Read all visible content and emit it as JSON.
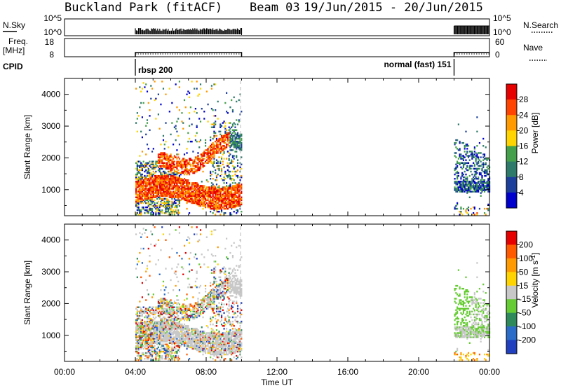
{
  "header": {
    "station": "Buckland Park (fitACF)",
    "beam": "Beam 03",
    "dates": "19/Jun/2015 - 20/Jun/2015"
  },
  "status_panels": {
    "nsky_label": "N.Sky",
    "nsky_ticks": [
      "10^5",
      "10^0"
    ],
    "nsearch_label": "N.Search",
    "nsearch_ticks": [
      "10^5",
      "10^0"
    ],
    "freq_label_line1": "Freq.",
    "freq_label_line2": "[MHz]",
    "freq_ticks": [
      "18",
      "8"
    ],
    "nave_label": "Nave",
    "nave_ticks": [
      "60",
      "0"
    ],
    "cpid_label": "CPID",
    "cpid_segments": [
      {
        "name": "rbsp 200",
        "start_hour": 4.0,
        "end_hour": 10.0
      },
      {
        "name": "normal (fast) 151",
        "start_hour": 22.0,
        "end_hour": 24.0
      }
    ]
  },
  "chart_data": [
    {
      "type": "heatmap",
      "panel": "power",
      "xlabel": "",
      "ylabel": "Slant Range [km]",
      "xlim": [
        0,
        24
      ],
      "ylim": [
        180,
        4500
      ],
      "yticks": [
        "1000",
        "2000",
        "3000",
        "4000"
      ],
      "colorbar_label": "Power [dB]",
      "colorbar_ticks": [
        "4",
        "8",
        "12",
        "16",
        "20",
        "24",
        "28"
      ],
      "colorbar_colors": [
        "#0000cc",
        "#1c3f9c",
        "#2e7a6a",
        "#44a04a",
        "#ffd400",
        "#ff9a00",
        "#ff4400",
        "#e60000"
      ],
      "data_windows_hours": [
        [
          4.0,
          10.0
        ],
        [
          22.0,
          24.0
        ]
      ]
    },
    {
      "type": "heatmap",
      "panel": "velocity",
      "xlabel": "Time UT",
      "ylabel": "Slant Range [km]",
      "xlim": [
        0,
        24
      ],
      "ylim": [
        180,
        4500
      ],
      "xticks": [
        "00:00",
        "04:00",
        "08:00",
        "12:00",
        "16:00",
        "20:00",
        "00:00"
      ],
      "yticks": [
        "1000",
        "2000",
        "3000",
        "4000"
      ],
      "colorbar_label": "Velocity [m s",
      "colorbar_label_sup": "-1",
      "colorbar_ticks": [
        "200",
        "100",
        "50",
        "15",
        "-15",
        "-50",
        "-100",
        "-200"
      ],
      "colorbar_colors": [
        "#2040c0",
        "#2a6cc8",
        "#2e8a5a",
        "#66cc33",
        "#c8c8c8",
        "#ffd400",
        "#ff9a00",
        "#ff5a00",
        "#e60000"
      ],
      "data_windows_hours": [
        [
          4.0,
          10.0
        ],
        [
          22.0,
          24.0
        ]
      ]
    }
  ]
}
